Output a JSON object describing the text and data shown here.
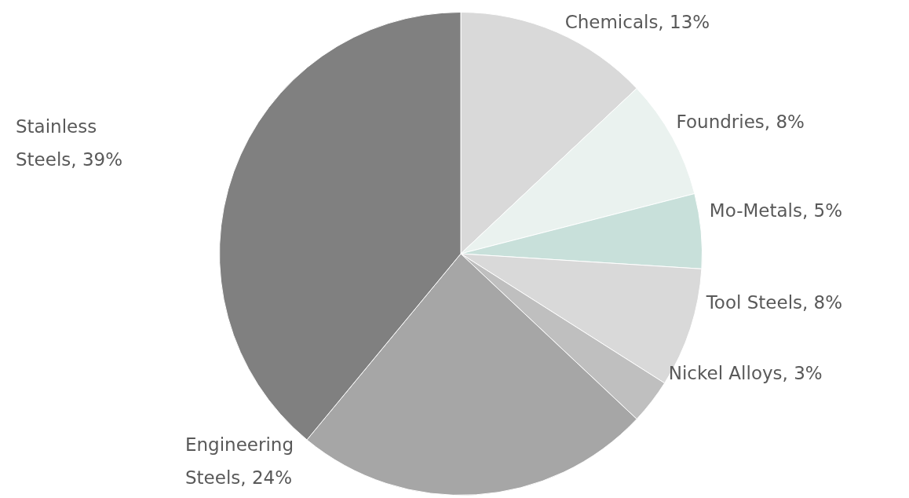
{
  "chart_data": {
    "type": "pie",
    "categories": [
      "Chemicals",
      "Foundries",
      "Mo-Metals",
      "Tool Steels",
      "Nickel Alloys",
      "Engineering Steels",
      "Stainless Steels"
    ],
    "values": [
      13,
      8,
      5,
      8,
      3,
      24,
      39
    ],
    "colors": [
      "#d9d9d9",
      "#eaf2ef",
      "#c8e0da",
      "#d9d9d9",
      "#bfbfbf",
      "#a6a6a6",
      "#808080"
    ],
    "value_labels": [
      "13%",
      "8%",
      "5%",
      "8%",
      "3%",
      "24%",
      "39%"
    ],
    "legend": false
  }
}
